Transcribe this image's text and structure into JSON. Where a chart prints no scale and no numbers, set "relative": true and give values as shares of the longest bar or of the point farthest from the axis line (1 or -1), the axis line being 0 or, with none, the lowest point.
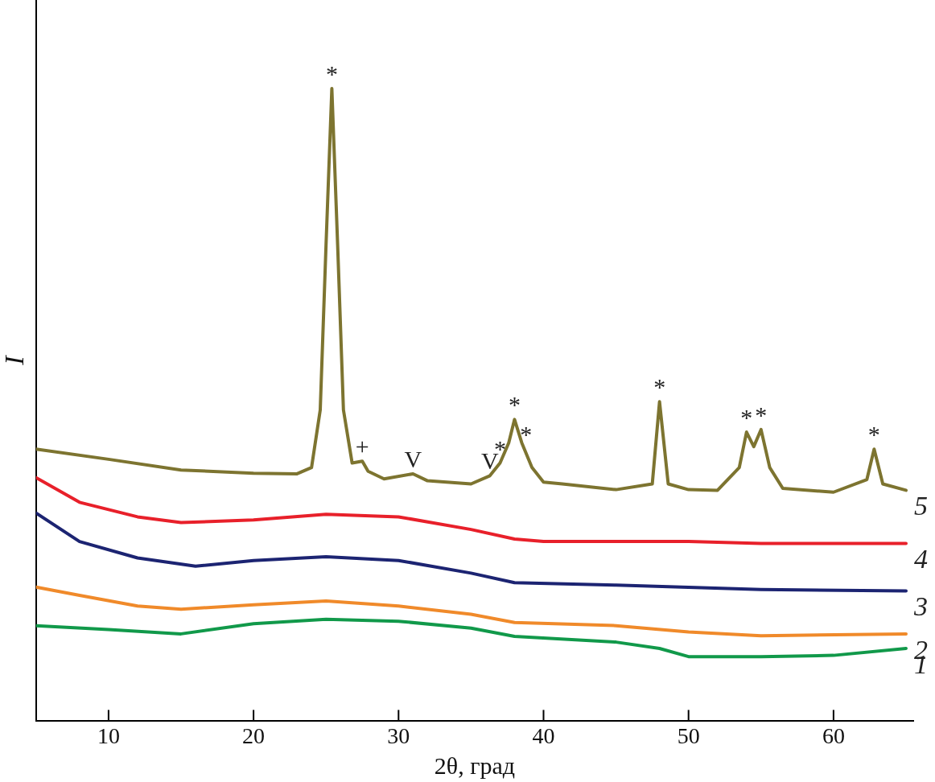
{
  "chart_data": {
    "type": "line",
    "xlabel": "2θ, град",
    "ylabel": "I",
    "relative": true,
    "xlim": [
      5,
      65.5
    ],
    "xticks": [
      10,
      20,
      30,
      40,
      50,
      60
    ],
    "grid": false,
    "legend": false,
    "marker": "none",
    "line_style": "solid",
    "series": [
      {
        "name": "1",
        "color": "#11994a",
        "x": [
          5,
          10,
          15,
          20,
          25,
          30,
          35,
          38,
          45,
          48,
          50,
          55,
          60,
          65
        ],
        "values": [
          0.151,
          0.145,
          0.138,
          0.154,
          0.161,
          0.158,
          0.147,
          0.134,
          0.125,
          0.115,
          0.102,
          0.102,
          0.104,
          0.115
        ]
      },
      {
        "name": "2",
        "color": "#f08a2a",
        "x": [
          5,
          8,
          12,
          15,
          20,
          25,
          30,
          35,
          38,
          45,
          50,
          55,
          65
        ],
        "values": [
          0.212,
          0.199,
          0.182,
          0.177,
          0.184,
          0.19,
          0.182,
          0.169,
          0.156,
          0.151,
          0.141,
          0.135,
          0.138
        ]
      },
      {
        "name": "3",
        "color": "#1c2472",
        "x": [
          5,
          8,
          12,
          16,
          20,
          25,
          30,
          35,
          38,
          45,
          55,
          65
        ],
        "values": [
          0.329,
          0.284,
          0.258,
          0.245,
          0.254,
          0.26,
          0.254,
          0.234,
          0.219,
          0.215,
          0.208,
          0.206
        ]
      },
      {
        "name": "4",
        "color": "#e8202a",
        "x": [
          5,
          8,
          12,
          15,
          20,
          25,
          30,
          35,
          38,
          40,
          50,
          55,
          65
        ],
        "values": [
          0.385,
          0.346,
          0.323,
          0.314,
          0.318,
          0.327,
          0.323,
          0.303,
          0.288,
          0.284,
          0.284,
          0.281,
          0.281
        ]
      },
      {
        "name": "5",
        "color": "#7d7430",
        "x": [
          5,
          10,
          15,
          20,
          23,
          24,
          24.6,
          25,
          25.4,
          25.8,
          26.2,
          26.8,
          27.5,
          27.9,
          29,
          31,
          32,
          35,
          36.3,
          37,
          37.6,
          38,
          38.5,
          39.2,
          40,
          41.3,
          45,
          47.5,
          48,
          48.6,
          50,
          52,
          53.5,
          54,
          54.5,
          55,
          55.6,
          56.5,
          60,
          62.3,
          62.8,
          63.4,
          65
        ],
        "values": [
          0.43,
          0.414,
          0.397,
          0.392,
          0.391,
          0.401,
          0.492,
          0.753,
          1,
          0.753,
          0.492,
          0.408,
          0.411,
          0.395,
          0.383,
          0.391,
          0.38,
          0.375,
          0.388,
          0.408,
          0.44,
          0.477,
          0.44,
          0.401,
          0.378,
          0.375,
          0.366,
          0.375,
          0.505,
          0.375,
          0.366,
          0.365,
          0.401,
          0.457,
          0.434,
          0.461,
          0.401,
          0.368,
          0.362,
          0.382,
          0.43,
          0.375,
          0.365
        ]
      }
    ],
    "annotations": [
      {
        "text": "*",
        "x": 25.4,
        "y": 1
      },
      {
        "text": "+",
        "x": 27.5,
        "y": 0.411
      },
      {
        "text": "V",
        "x": 31,
        "y": 0.391
      },
      {
        "text": "V",
        "x": 36.3,
        "y": 0.388
      },
      {
        "text": "*",
        "x": 37,
        "y": 0.408
      },
      {
        "text": "*",
        "x": 38,
        "y": 0.477
      },
      {
        "text": "*",
        "x": 38.8,
        "y": 0.43
      },
      {
        "text": "*",
        "x": 48,
        "y": 0.505
      },
      {
        "text": "*",
        "x": 54,
        "y": 0.457
      },
      {
        "text": "*",
        "x": 55,
        "y": 0.461
      },
      {
        "text": "*",
        "x": 62.8,
        "y": 0.43
      }
    ]
  }
}
